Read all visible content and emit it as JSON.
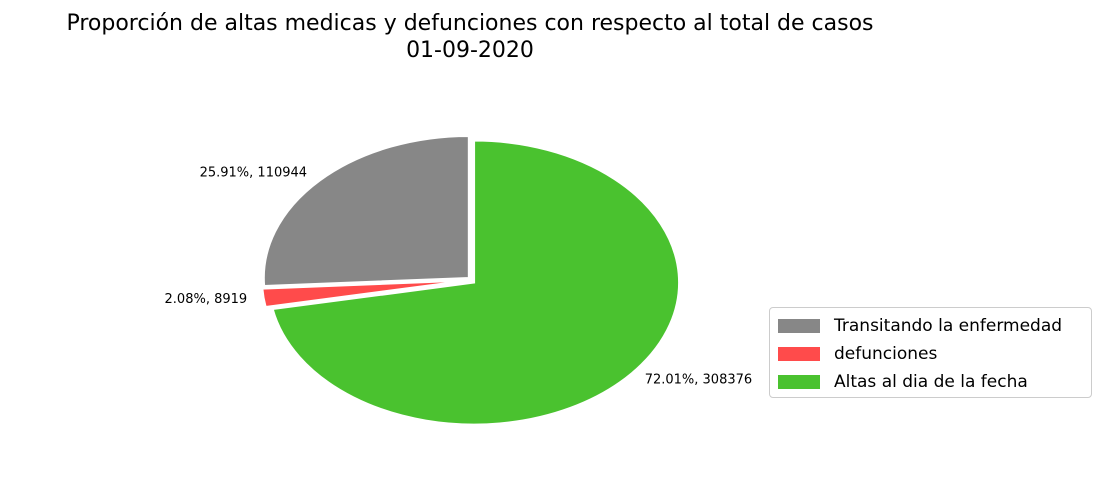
{
  "chart_data": {
    "type": "pie",
    "title_line1": "Proporción de altas medicas y defunciones con respecto al total de casos",
    "title_line2": "01-09-2020",
    "slices": [
      {
        "name": "Transitando la enfermedad",
        "value": 110944,
        "percent": 25.91,
        "label": "25.91%, 110944",
        "color": "#878787"
      },
      {
        "name": "defunciones",
        "value": 8919,
        "percent": 2.08,
        "label": "2.08%, 8919",
        "color": "#ff4b4b"
      },
      {
        "name": "Altas al dia de la fecha",
        "value": 308376,
        "percent": 72.01,
        "label": "72.01%, 308376",
        "color": "#4ac22f"
      }
    ],
    "start_angle_deg": 90,
    "direction": "counterclockwise",
    "exploded": true,
    "legend_position": "right"
  }
}
